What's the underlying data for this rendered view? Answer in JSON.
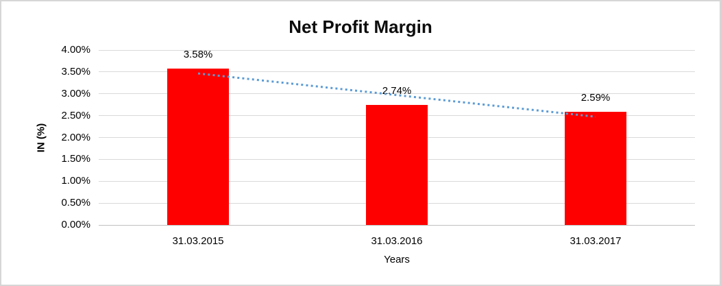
{
  "chart_data": {
    "type": "bar",
    "title": "Net Profit Margin",
    "categories": [
      "31.03.2015",
      "31.03.2016",
      "31.03.2017"
    ],
    "values": [
      3.58,
      2.74,
      2.59
    ],
    "data_labels": [
      "3.58%",
      "2.74%",
      "2.59%"
    ],
    "xlabel": "Years",
    "ylabel": "IN (%)",
    "ylim": [
      0,
      4
    ],
    "ytick_step": 0.5,
    "ytick_labels": [
      "0.00%",
      "0.50%",
      "1.00%",
      "1.50%",
      "2.00%",
      "2.50%",
      "3.00%",
      "3.50%",
      "4.00%"
    ],
    "grid": true,
    "legend": false,
    "trendline": {
      "type": "linear",
      "style": "dotted",
      "color": "#5B9BD5"
    },
    "colors": {
      "bar": "#FF0000",
      "gridline": "#D9D9D9",
      "axis_line": "#BFBFBF",
      "text": "#000000"
    }
  }
}
